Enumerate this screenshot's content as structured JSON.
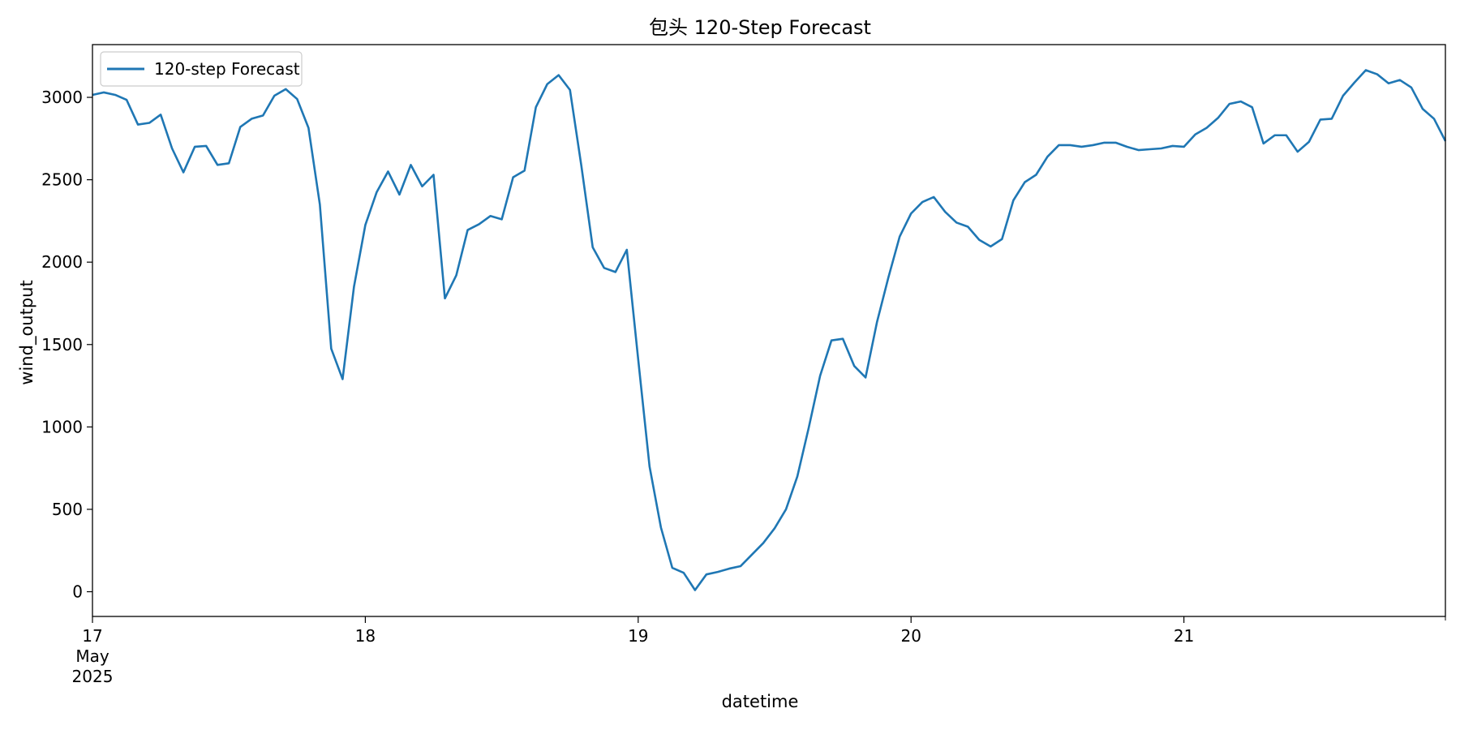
{
  "chart_data": {
    "type": "line",
    "title": "包头 120-Step Forecast",
    "xlabel": "datetime",
    "ylabel": "wind_output",
    "x_start": "2025-05-17 00:00",
    "x_step_hours": 1,
    "xlim": [
      "2025-05-17 00:00",
      "2025-05-21 23:00"
    ],
    "ylim": [
      -150,
      3320
    ],
    "grid": false,
    "legend_position": "top-left",
    "x_tick_labels": [
      {
        "date": "2025-05-17",
        "lines": [
          "17",
          "May",
          "2025"
        ]
      },
      {
        "date": "2025-05-18",
        "lines": [
          "18"
        ]
      },
      {
        "date": "2025-05-19",
        "lines": [
          "19"
        ]
      },
      {
        "date": "2025-05-20",
        "lines": [
          "20"
        ]
      },
      {
        "date": "2025-05-21",
        "lines": [
          "21"
        ]
      }
    ],
    "y_ticks": [
      0,
      500,
      1000,
      1500,
      2000,
      2500,
      3000
    ],
    "series": [
      {
        "name": "120-step Forecast",
        "color": "#1f77b4",
        "values": [
          3015,
          3030,
          3015,
          2985,
          2835,
          2845,
          2895,
          2690,
          2545,
          2700,
          2705,
          2590,
          2600,
          2820,
          2870,
          2890,
          3010,
          3050,
          2990,
          2815,
          2350,
          1475,
          1290,
          1850,
          2225,
          2425,
          2550,
          2410,
          2590,
          2460,
          2530,
          1780,
          1920,
          2195,
          2230,
          2280,
          2260,
          2515,
          2555,
          2940,
          3080,
          3135,
          3045,
          2585,
          2090,
          1965,
          1940,
          2075,
          1410,
          760,
          390,
          145,
          115,
          10,
          105,
          120,
          140,
          155,
          225,
          295,
          385,
          500,
          700,
          995,
          1310,
          1525,
          1535,
          1370,
          1300,
          1635,
          1905,
          2155,
          2295,
          2365,
          2395,
          2305,
          2240,
          2215,
          2135,
          2095,
          2140,
          2375,
          2485,
          2530,
          2640,
          2710,
          2710,
          2700,
          2710,
          2725,
          2725,
          2700,
          2680,
          2685,
          2690,
          2705,
          2700,
          2775,
          2815,
          2875,
          2960,
          2975,
          2940,
          2720,
          2770,
          2770,
          2670,
          2730,
          2865,
          2870,
          3010,
          3090,
          3165,
          3140,
          3085,
          3105,
          3060,
          2930,
          2870,
          2735
        ]
      }
    ]
  }
}
